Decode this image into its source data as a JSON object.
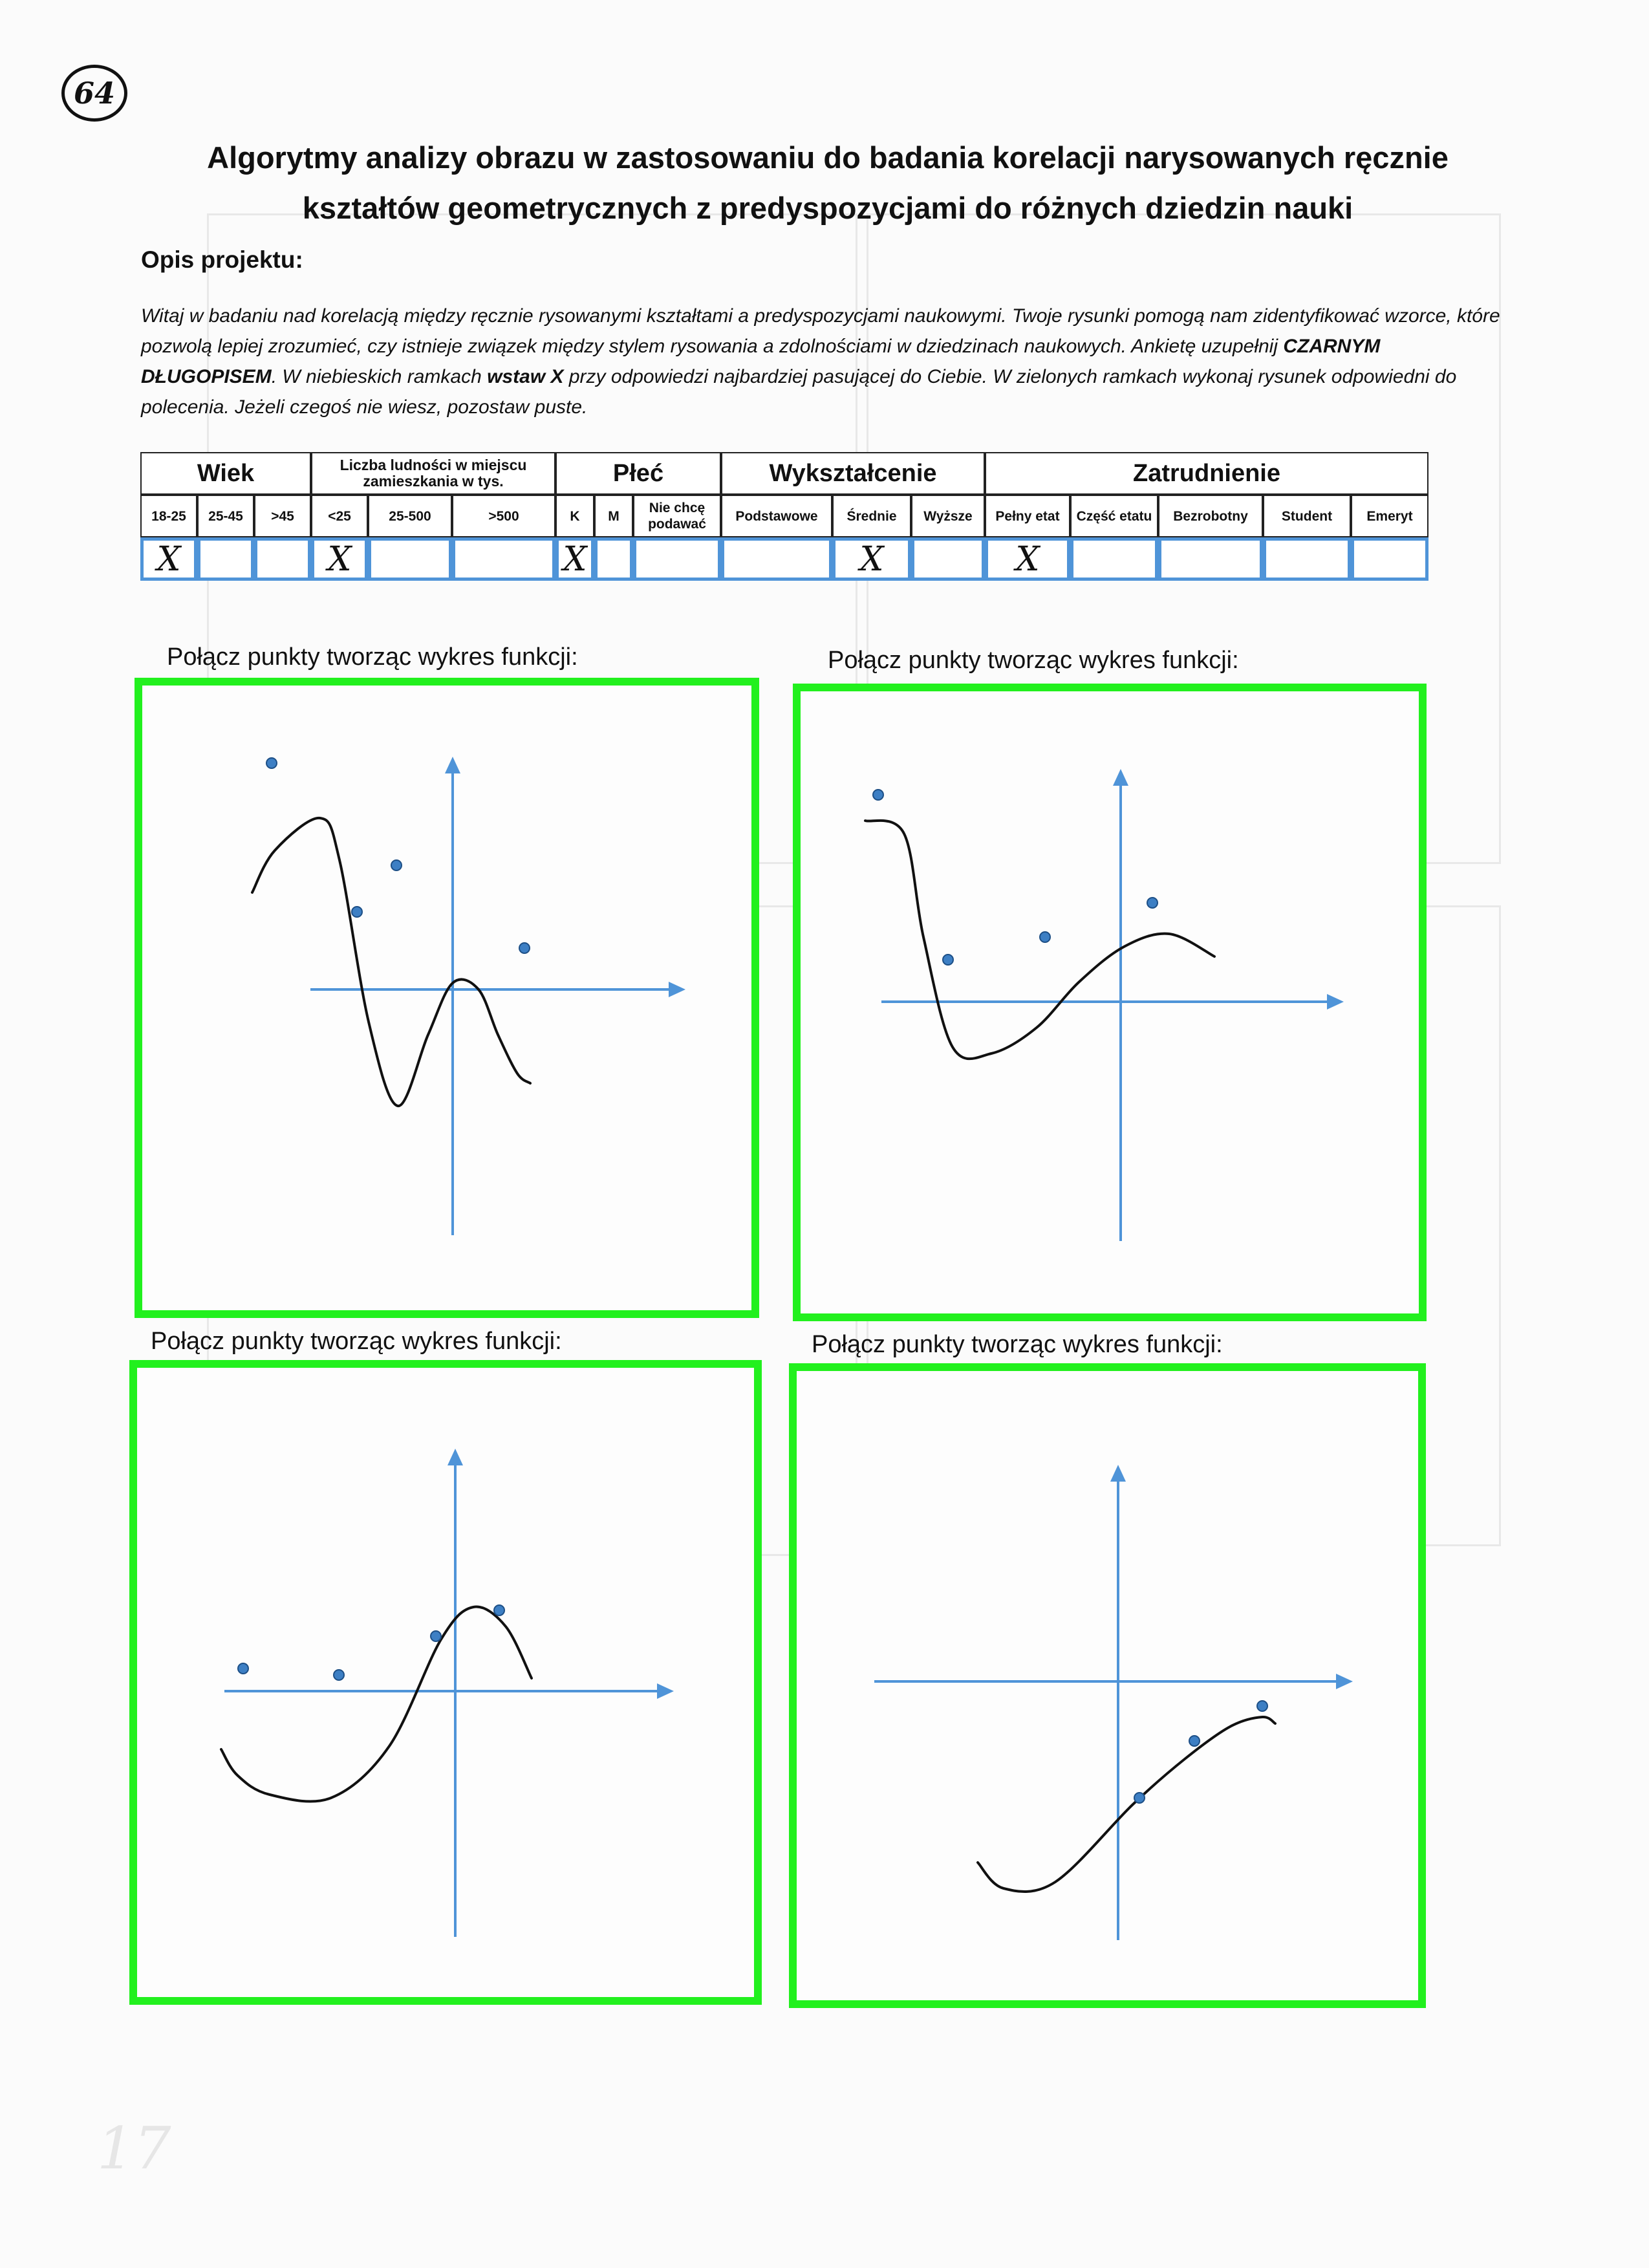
{
  "page": {
    "number_badge": "64",
    "faint_page_number": "17",
    "title_line1": "Algorytmy analizy obrazu w zastosowaniu do badania korelacji narysowanych ręcznie",
    "title_line2": "kształtów geometrycznych z predyspozycjami do różnych dziedzin nauki",
    "section_label": "Opis projektu:"
  },
  "description": {
    "part1": "Witaj w badaniu nad korelacją między ręcznie rysowanymi kształtami a predyspozycjami naukowymi. Twoje rysunki pomogą nam zidentyfikować wzorce, które pozwolą lepiej zrozumieć, czy istnieje związek między stylem rysowania a zdolnościami w dziedzinach naukowych. Ankietę uzupełnij ",
    "bold1": "CZARNYM DŁUGOPISEM",
    "part2": ". W niebieskich ramkach ",
    "bold2": "wstaw X",
    "part3": " przy odpowiedzi najbardziej pasującej do Ciebie. W zielonych ramkach wykonaj rysunek odpowiedni do polecenia. Jeżeli czegoś nie wiesz, pozostaw puste."
  },
  "table": {
    "groups": {
      "wiek": "Wiek",
      "ludnosc": "Liczba ludności w miejscu zamieszkania w tys.",
      "plec": "Płeć",
      "wyksztalcenie": "Wykształcenie",
      "zatrudnienie": "Zatrudnienie"
    },
    "options": {
      "w1": "18-25",
      "w2": "25-45",
      "w3": ">45",
      "l1": "<25",
      "l2": "25-500",
      "l3": ">500",
      "p1": "K",
      "p2": "M",
      "p3": "Nie chcę podawać",
      "e1": "Podstawowe",
      "e2": "Średnie",
      "e3": "Wyższe",
      "z1": "Pełny etat",
      "z2": "Część etatu",
      "z3": "Bezrobotny",
      "z4": "Student",
      "z5": "Emeryt"
    },
    "marks": {
      "w1": "X",
      "w2": "",
      "w3": "",
      "l1": "X",
      "l2": "",
      "l3": "",
      "p1": "X",
      "p2": "",
      "p3": "",
      "e1": "",
      "e2": "X",
      "e3": "",
      "z1": "X",
      "z2": "",
      "z3": "",
      "z4": "",
      "z5": ""
    },
    "colors": {
      "answer_box": "#4f94d8"
    }
  },
  "drawings": {
    "prompt": "Połącz punkty tworząc wykres funkcji:",
    "colors": {
      "frame": "#22f01e",
      "axes": "#4f94d8",
      "points": "#3d7fc4",
      "stroke": "#111111"
    },
    "panels": [
      {
        "id": "top-left",
        "points": [
          [
            30,
            30
          ],
          [
            162,
            260
          ],
          [
            223,
            188
          ],
          [
            421,
            316
          ]
        ],
        "curve": [
          [
            0,
            230
          ],
          [
            35,
            165
          ],
          [
            105,
            115
          ],
          [
            135,
            180
          ],
          [
            180,
            430
          ],
          [
            225,
            560
          ],
          [
            272,
            450
          ],
          [
            310,
            370
          ],
          [
            350,
            380
          ],
          [
            380,
            450
          ],
          [
            410,
            510
          ],
          [
            430,
            525
          ]
        ]
      },
      {
        "id": "top-right",
        "points": [
          [
            20,
            30
          ],
          [
            128,
            285
          ],
          [
            278,
            250
          ],
          [
            444,
            197
          ]
        ],
        "curve": [
          [
            0,
            70
          ],
          [
            60,
            90
          ],
          [
            90,
            250
          ],
          [
            135,
            420
          ],
          [
            195,
            430
          ],
          [
            265,
            390
          ],
          [
            330,
            320
          ],
          [
            400,
            265
          ],
          [
            470,
            245
          ],
          [
            540,
            280
          ]
        ]
      },
      {
        "id": "bottom-left",
        "points": [
          [
            34,
            215
          ],
          [
            182,
            225
          ],
          [
            332,
            165
          ],
          [
            430,
            125
          ]
        ],
        "curve": [
          [
            0,
            340
          ],
          [
            25,
            380
          ],
          [
            75,
            410
          ],
          [
            170,
            415
          ],
          [
            260,
            335
          ],
          [
            340,
            170
          ],
          [
            390,
            120
          ],
          [
            440,
            150
          ],
          [
            480,
            230
          ]
        ]
      },
      {
        "id": "bottom-right",
        "points": [
          [
            250,
            400
          ],
          [
            335,
            312
          ],
          [
            440,
            258
          ]
        ],
        "curve": [
          [
            0,
            500
          ],
          [
            40,
            540
          ],
          [
            120,
            530
          ],
          [
            240,
            410
          ],
          [
            320,
            340
          ],
          [
            390,
            290
          ],
          [
            440,
            275
          ],
          [
            460,
            285
          ]
        ]
      }
    ]
  }
}
